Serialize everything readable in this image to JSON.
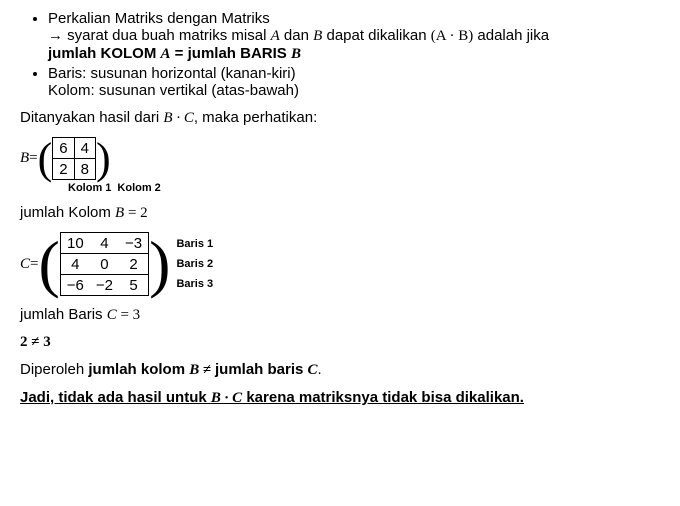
{
  "bullets": {
    "b1_line1": "Perkalian Matriks dengan Matriks",
    "b1_line2_pre": "→ syarat dua buah matriks misal ",
    "b1_A": "A",
    "b1_mid1": " dan ",
    "b1_B": "B",
    "b1_mid2": " dapat dikalikan ",
    "b1_paren": "(A · B)",
    "b1_mid3": " adalah jika",
    "b1_line3_pre": "jumlah KOLOM ",
    "b1_line3_A": "A",
    "b1_line3_eq": " = jumlah BARIS ",
    "b1_line3_B": "B",
    "b2_line1": "Baris: susunan horizontal (kanan-kiri)",
    "b2_line2": "Kolom: susunan vertikal (atas-bawah)"
  },
  "q": {
    "pre": "Ditanyakan hasil dari ",
    "expr": "B · C",
    "post": ", maka perhatikan:"
  },
  "matB": {
    "label": "B",
    "eq": " = ",
    "cells": [
      [
        "6",
        "4"
      ],
      [
        "2",
        "8"
      ]
    ],
    "col_labels": [
      "Kolom 1",
      "Kolom 2"
    ]
  },
  "jkb": {
    "pre": "jumlah Kolom ",
    "var": "B",
    "eq": " = 2"
  },
  "matC": {
    "label": "C",
    "eq": " = ",
    "cells": [
      [
        "10",
        "4",
        "−3"
      ],
      [
        "4",
        "0",
        "2"
      ],
      [
        "−6",
        "−2",
        "5"
      ]
    ],
    "row_labels": [
      "Baris 1",
      "Baris 2",
      "Baris 3"
    ]
  },
  "jbc": {
    "pre": "jumlah Baris ",
    "var": "C",
    "eq": " = 3"
  },
  "neq": "2 ≠ 3",
  "conc1": {
    "pre": "Diperoleh ",
    "b1": "jumlah kolom ",
    "v1": "B",
    "mid": " ≠ ",
    "b2": "jumlah baris ",
    "v2": "C",
    "post": "."
  },
  "conc2": {
    "pre": "Jadi, tidak ada hasil untuk ",
    "expr": "B · C",
    "post": " karena matriksnya tidak bisa dikalikan."
  }
}
